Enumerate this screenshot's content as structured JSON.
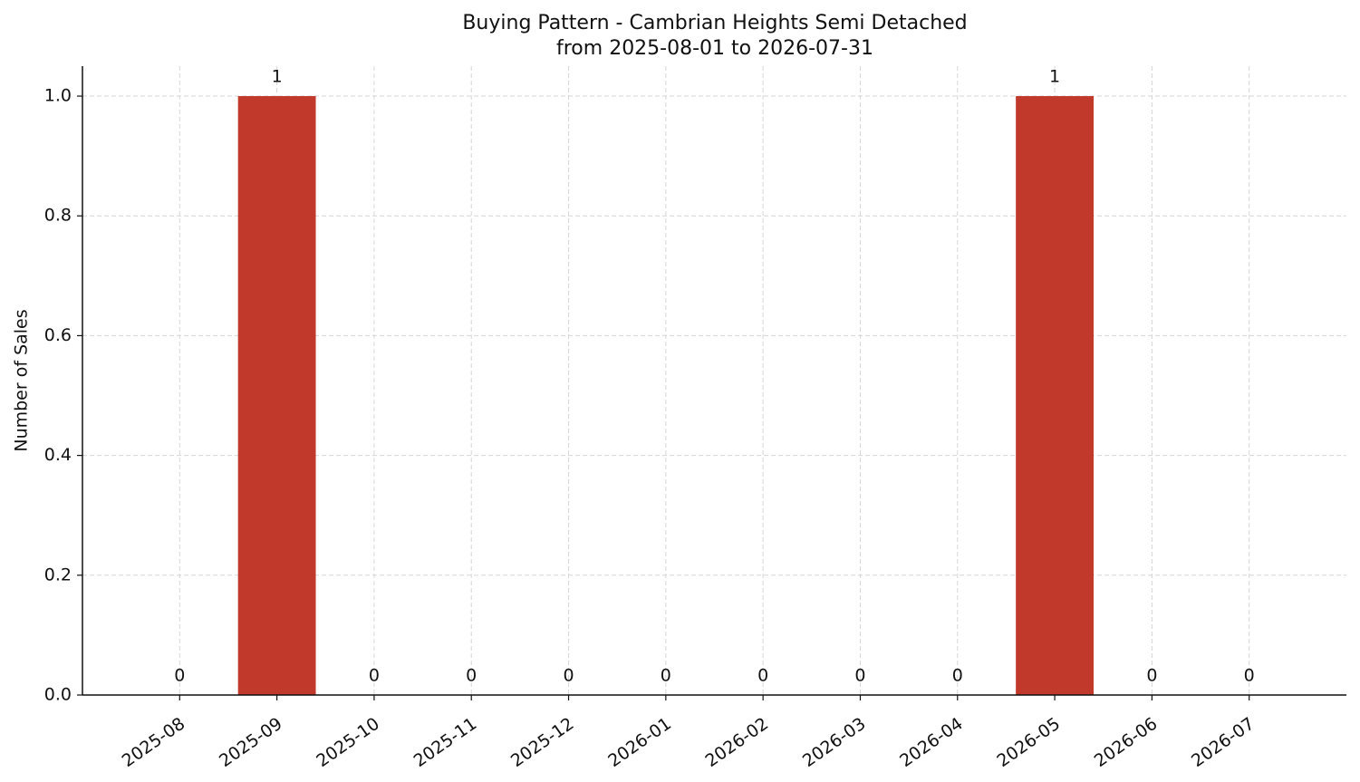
{
  "chart_data": {
    "type": "bar",
    "title": "Buying Pattern - Cambrian Heights Semi Detached",
    "subtitle": "from 2025-08-01 to 2026-07-31",
    "y_label": "Number of Sales",
    "categories": [
      "2025-08",
      "2025-09",
      "2025-10",
      "2025-11",
      "2025-12",
      "2026-01",
      "2026-02",
      "2026-03",
      "2026-04",
      "2026-05",
      "2026-06",
      "2026-07"
    ],
    "values": [
      0,
      1,
      0,
      0,
      0,
      0,
      0,
      0,
      0,
      1,
      0,
      0
    ],
    "color": "#c0392b",
    "ylim": [
      0,
      1.05
    ],
    "yticks": [
      {
        "value": 0,
        "label": "0.0"
      },
      {
        "value": 0.2,
        "label": "0.2"
      },
      {
        "value": 0.4,
        "label": "0.4"
      },
      {
        "value": 0.6,
        "label": "0.6"
      },
      {
        "value": 0.8,
        "label": "0.8"
      },
      {
        "value": 1,
        "label": "1.0"
      }
    ],
    "grid": true
  }
}
